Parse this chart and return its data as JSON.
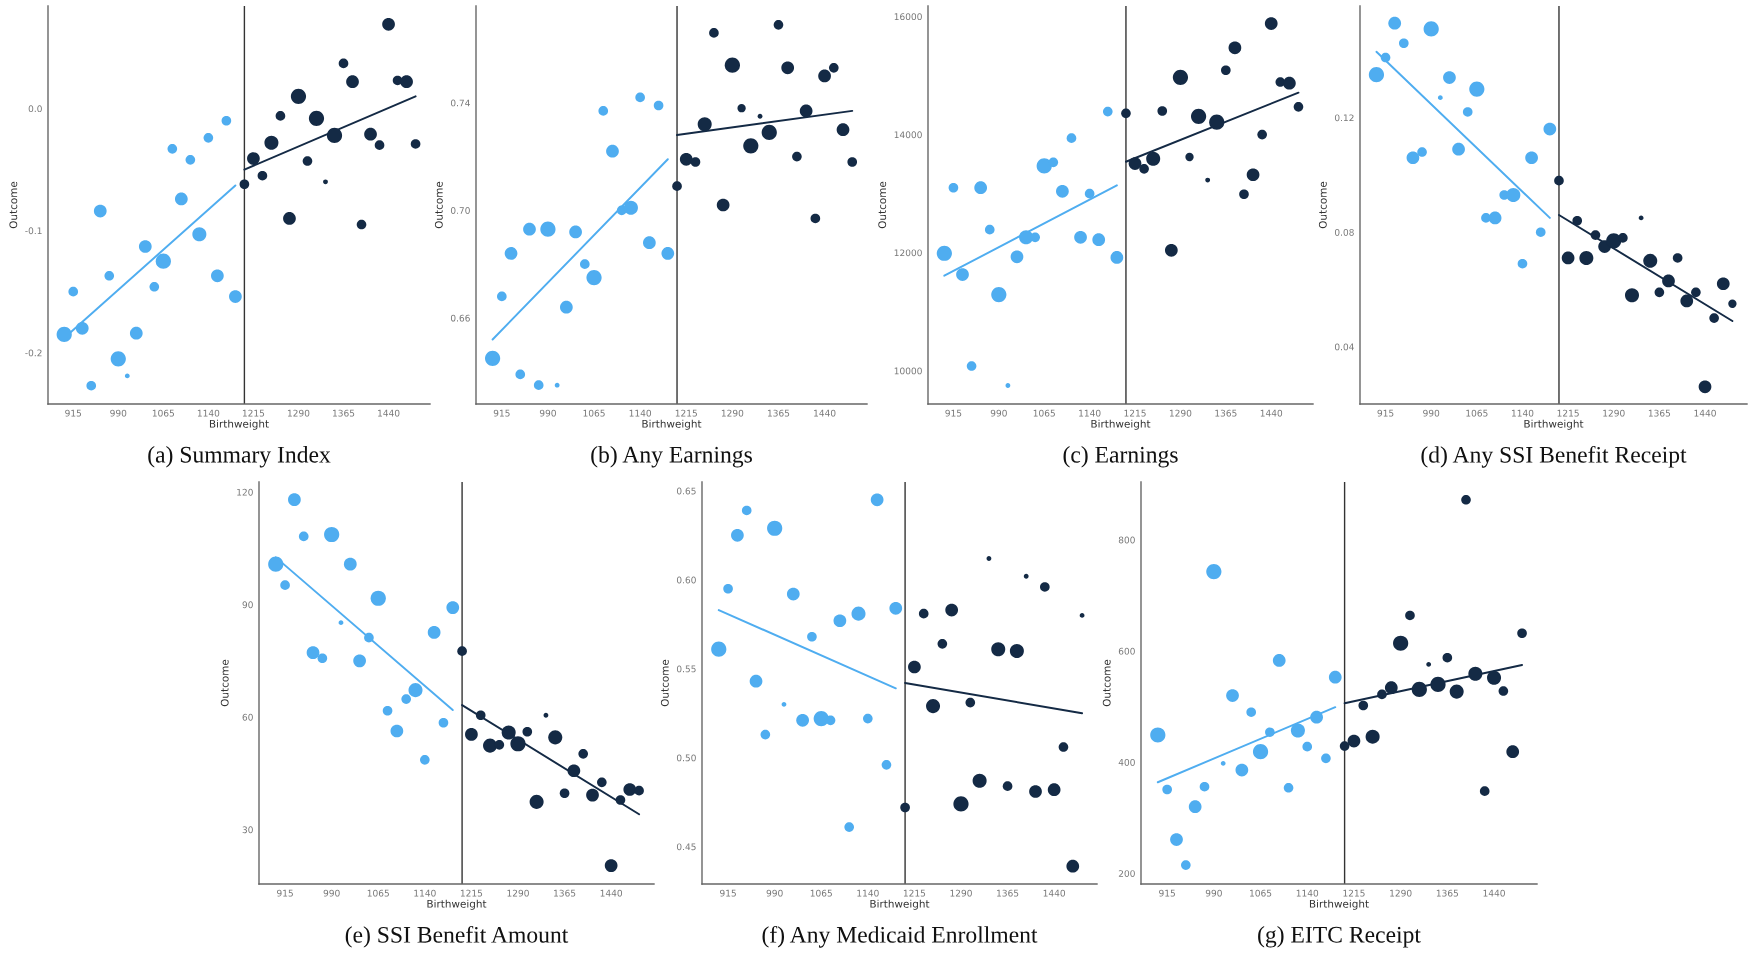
{
  "chart_data": [
    {
      "type": "bubble",
      "title": "(a) Summary Index",
      "xlabel": "Birthweight",
      "ylabel": "Outcome",
      "xlim": [
        873,
        1509
      ],
      "xticks": [
        915,
        990,
        1065,
        1140,
        1215,
        1290,
        1365,
        1440
      ],
      "ylim": [
        -0.242,
        0.084
      ],
      "yticks": [
        -0.2,
        -0.1,
        {
          "value": 0,
          "label": "0.0"
        }
      ],
      "ref_lines": [
        {
          "axis": "x",
          "value": 1200,
          "color": "#333333"
        }
      ],
      "series": [
        {
          "color": "#4fadf0",
          "x": [
            900,
            915,
            930,
            945,
            960,
            975,
            990,
            1005,
            1020,
            1035,
            1050,
            1065,
            1080,
            1095,
            1110,
            1125,
            1140,
            1155,
            1170,
            1185
          ],
          "values": [
            -0.185,
            -0.15,
            -0.18,
            -0.227,
            -0.084,
            -0.137,
            -0.205,
            -0.219,
            -0.184,
            -0.113,
            -0.146,
            -0.125,
            -0.033,
            -0.074,
            -0.042,
            -0.103,
            -0.024,
            -0.137,
            -0.01,
            -0.154
          ],
          "sizes": [
            1,
            0.4,
            0.7,
            0.4,
            0.7,
            0.4,
            1,
            0.1,
            0.7,
            0.7,
            0.4,
            1,
            0.4,
            0.7,
            0.4,
            0.85,
            0.4,
            0.7,
            0.4,
            0.7
          ]
        },
        {
          "color": "#142a45",
          "x": [
            1200,
            1215,
            1230,
            1245,
            1260,
            1275,
            1290,
            1305,
            1320,
            1335,
            1350,
            1365,
            1380,
            1395,
            1410,
            1425,
            1440,
            1455,
            1470,
            1485
          ],
          "values": [
            -0.062,
            -0.041,
            -0.055,
            -0.028,
            -0.006,
            -0.09,
            0.01,
            -0.043,
            -0.008,
            -0.06,
            -0.022,
            0.037,
            0.022,
            -0.095,
            -0.021,
            -0.03,
            0.069,
            0.023,
            0.022,
            -0.029
          ],
          "sizes": [
            0.4,
            0.7,
            0.4,
            0.85,
            0.4,
            0.7,
            1,
            0.4,
            1,
            0.1,
            1,
            0.4,
            0.7,
            0.4,
            0.7,
            0.4,
            0.7,
            0.4,
            0.7,
            0.4
          ]
        },
        {
          "type": "line",
          "color": "#4fadf0",
          "x": [
            900,
            1185
          ],
          "values": [
            -0.188,
            -0.063
          ]
        },
        {
          "type": "line",
          "color": "#142a45",
          "x": [
            1200,
            1485
          ],
          "values": [
            -0.05,
            0.01
          ]
        }
      ]
    },
    {
      "type": "bubble",
      "title": "(b) Any Earnings",
      "xlabel": "Birthweight",
      "ylabel": "Outcome",
      "xlim": [
        873,
        1509
      ],
      "xticks": [
        915,
        990,
        1065,
        1140,
        1215,
        1290,
        1365,
        1440
      ],
      "ylim": [
        0.628,
        0.776
      ],
      "yticks": [
        0.66,
        {
          "value": 0.7,
          "label": "0.70"
        },
        0.74
      ],
      "ref_lines": [
        {
          "axis": "x",
          "value": 1200,
          "color": "#333333"
        }
      ],
      "series": [
        {
          "color": "#4fadf0",
          "x": [
            900,
            915,
            930,
            945,
            960,
            975,
            990,
            1005,
            1020,
            1035,
            1050,
            1065,
            1080,
            1095,
            1110,
            1125,
            1140,
            1155,
            1170,
            1185
          ],
          "values": [
            0.645,
            0.668,
            0.684,
            0.639,
            0.693,
            0.635,
            0.693,
            0.635,
            0.664,
            0.692,
            0.68,
            0.675,
            0.737,
            0.722,
            0.7,
            0.701,
            0.742,
            0.688,
            0.739,
            0.684
          ],
          "sizes": [
            1,
            0.4,
            0.7,
            0.4,
            0.7,
            0.4,
            1,
            0.1,
            0.7,
            0.7,
            0.4,
            1,
            0.4,
            0.7,
            0.4,
            0.85,
            0.4,
            0.7,
            0.4,
            0.7
          ]
        },
        {
          "color": "#142a45",
          "x": [
            1200,
            1215,
            1230,
            1245,
            1260,
            1275,
            1290,
            1305,
            1320,
            1335,
            1350,
            1365,
            1380,
            1395,
            1410,
            1425,
            1440,
            1455,
            1470,
            1485
          ],
          "values": [
            0.709,
            0.719,
            0.718,
            0.732,
            0.766,
            0.702,
            0.754,
            0.738,
            0.724,
            0.735,
            0.729,
            0.769,
            0.753,
            0.72,
            0.737,
            0.697,
            0.75,
            0.753,
            0.73,
            0.718
          ],
          "sizes": [
            0.4,
            0.7,
            0.4,
            0.85,
            0.4,
            0.7,
            1,
            0.3,
            1,
            0.1,
            1,
            0.4,
            0.7,
            0.4,
            0.7,
            0.4,
            0.7,
            0.4,
            0.7,
            0.4
          ]
        },
        {
          "type": "line",
          "color": "#4fadf0",
          "x": [
            900,
            1185
          ],
          "values": [
            0.652,
            0.719
          ]
        },
        {
          "type": "line",
          "color": "#142a45",
          "x": [
            1200,
            1485
          ],
          "values": [
            0.728,
            0.737
          ]
        }
      ]
    },
    {
      "type": "bubble",
      "title": "(c) Earnings",
      "xlabel": "Birthweight",
      "ylabel": "Outcome",
      "xlim": [
        873,
        1509
      ],
      "xticks": [
        915,
        990,
        1065,
        1140,
        1215,
        1290,
        1365,
        1440
      ],
      "ylim": [
        9437,
        16178
      ],
      "yticks": [
        10000,
        12000,
        14000,
        16000
      ],
      "ref_lines": [
        {
          "axis": "x",
          "value": 1200,
          "color": "#333333"
        }
      ],
      "series": [
        {
          "color": "#4fadf0",
          "x": [
            900,
            915,
            930,
            945,
            960,
            975,
            990,
            1005,
            1020,
            1035,
            1050,
            1065,
            1080,
            1095,
            1110,
            1125,
            1140,
            1155,
            1170,
            1185
          ],
          "values": [
            11990,
            13100,
            11630,
            10080,
            13100,
            12390,
            11290,
            9750,
            11930,
            12260,
            12260,
            13470,
            13530,
            13040,
            13940,
            12260,
            13000,
            12220,
            14390,
            11920
          ],
          "sizes": [
            1,
            0.4,
            0.7,
            0.4,
            0.7,
            0.4,
            1,
            0.1,
            0.7,
            0.85,
            0.4,
            1,
            0.4,
            0.7,
            0.4,
            0.7,
            0.4,
            0.7,
            0.4,
            0.7
          ]
        },
        {
          "color": "#142a45",
          "x": [
            1200,
            1215,
            1230,
            1245,
            1260,
            1275,
            1290,
            1305,
            1320,
            1335,
            1350,
            1365,
            1380,
            1395,
            1410,
            1425,
            1440,
            1455,
            1470,
            1485
          ],
          "values": [
            14360,
            13510,
            13420,
            13590,
            14400,
            12040,
            14970,
            13620,
            14310,
            13230,
            14210,
            15090,
            15470,
            12990,
            13320,
            14000,
            15880,
            14890,
            14870,
            14470
          ],
          "sizes": [
            0.4,
            0.7,
            0.4,
            0.85,
            0.4,
            0.7,
            1,
            0.3,
            1,
            0.1,
            1,
            0.4,
            0.7,
            0.4,
            0.7,
            0.4,
            0.7,
            0.4,
            0.7,
            0.4
          ]
        },
        {
          "type": "line",
          "color": "#4fadf0",
          "x": [
            900,
            1185
          ],
          "values": [
            11610,
            13140
          ]
        },
        {
          "type": "line",
          "color": "#142a45",
          "x": [
            1200,
            1485
          ],
          "values": [
            13540,
            14710
          ]
        }
      ]
    },
    {
      "type": "bubble",
      "title": "(d) Any SSI Benefit Receipt",
      "xlabel": "Birthweight",
      "ylabel": "Outcome",
      "xlim": [
        873,
        1509
      ],
      "xticks": [
        915,
        990,
        1065,
        1140,
        1215,
        1290,
        1365,
        1440
      ],
      "ylim": [
        0.02,
        0.159
      ],
      "yticks": [
        0.04,
        0.08,
        0.12
      ],
      "ref_lines": [
        {
          "axis": "x",
          "value": 1200,
          "color": "#333333"
        }
      ],
      "series": [
        {
          "color": "#4fadf0",
          "x": [
            900,
            915,
            930,
            945,
            960,
            975,
            990,
            1005,
            1020,
            1035,
            1050,
            1065,
            1080,
            1095,
            1110,
            1125,
            1140,
            1155,
            1170,
            1185
          ],
          "values": [
            0.135,
            0.141,
            0.153,
            0.146,
            0.106,
            0.108,
            0.151,
            0.127,
            0.134,
            0.109,
            0.122,
            0.13,
            0.085,
            0.085,
            0.093,
            0.093,
            0.069,
            0.106,
            0.08,
            0.116
          ],
          "sizes": [
            1,
            0.4,
            0.7,
            0.4,
            0.7,
            0.4,
            1,
            0.1,
            0.7,
            0.7,
            0.4,
            1,
            0.4,
            0.7,
            0.4,
            0.85,
            0.4,
            0.7,
            0.4,
            0.7
          ]
        },
        {
          "color": "#142a45",
          "x": [
            1200,
            1215,
            1230,
            1245,
            1260,
            1275,
            1290,
            1305,
            1320,
            1335,
            1350,
            1365,
            1380,
            1395,
            1410,
            1425,
            1440,
            1455,
            1470,
            1485
          ],
          "values": [
            0.098,
            0.071,
            0.084,
            0.071,
            0.079,
            0.075,
            0.077,
            0.078,
            0.058,
            0.085,
            0.07,
            0.059,
            0.063,
            0.071,
            0.056,
            0.059,
            0.026,
            0.05,
            0.062,
            0.055
          ],
          "sizes": [
            0.4,
            0.7,
            0.4,
            0.85,
            0.4,
            0.7,
            1,
            0.4,
            0.85,
            0.1,
            0.85,
            0.4,
            0.7,
            0.4,
            0.7,
            0.4,
            0.7,
            0.4,
            0.7,
            0.3
          ]
        },
        {
          "type": "line",
          "color": "#4fadf0",
          "x": [
            900,
            1185
          ],
          "values": [
            0.143,
            0.085
          ]
        },
        {
          "type": "line",
          "color": "#142a45",
          "x": [
            1200,
            1485
          ],
          "values": [
            0.086,
            0.049
          ]
        }
      ]
    },
    {
      "type": "bubble",
      "title": "(e) SSI Benefit Amount",
      "xlabel": "Birthweight",
      "ylabel": "Outcome",
      "xlim": [
        873,
        1509
      ],
      "xticks": [
        915,
        990,
        1065,
        1140,
        1215,
        1290,
        1365,
        1440
      ],
      "ylim": [
        15.5,
        122.7
      ],
      "yticks": [
        30,
        60,
        90,
        120
      ],
      "ref_lines": [
        {
          "axis": "x",
          "value": 1200,
          "color": "#333333"
        }
      ],
      "series": [
        {
          "color": "#4fadf0",
          "x": [
            900,
            915,
            930,
            945,
            960,
            975,
            990,
            1005,
            1020,
            1035,
            1050,
            1065,
            1080,
            1095,
            1110,
            1125,
            1140,
            1155,
            1170,
            1185
          ],
          "values": [
            100.8,
            95.2,
            118.0,
            108.2,
            77.2,
            75.7,
            108.7,
            85.2,
            100.8,
            75.0,
            81.2,
            91.7,
            61.7,
            56.3,
            64.8,
            67.2,
            48.6,
            82.6,
            58.5,
            89.2
          ],
          "sizes": [
            1,
            0.4,
            0.7,
            0.4,
            0.7,
            0.4,
            1,
            0.1,
            0.7,
            0.7,
            0.4,
            1,
            0.4,
            0.7,
            0.4,
            0.85,
            0.4,
            0.7,
            0.4,
            0.7
          ]
        },
        {
          "color": "#142a45",
          "x": [
            1200,
            1215,
            1230,
            1245,
            1260,
            1275,
            1290,
            1305,
            1320,
            1335,
            1350,
            1365,
            1380,
            1395,
            1410,
            1425,
            1440,
            1455,
            1470,
            1485
          ],
          "values": [
            77.6,
            55.4,
            60.5,
            52.4,
            52.6,
            55.9,
            52.9,
            56.1,
            37.4,
            60.5,
            54.6,
            39.7,
            45.7,
            50.2,
            39.2,
            42.6,
            20.4,
            37.9,
            40.7,
            40.4
          ],
          "sizes": [
            0.4,
            0.7,
            0.4,
            0.85,
            0.4,
            0.85,
            1,
            0.4,
            0.85,
            0.1,
            0.85,
            0.4,
            0.7,
            0.4,
            0.7,
            0.4,
            0.7,
            0.4,
            0.7,
            0.4
          ]
        },
        {
          "type": "line",
          "color": "#4fadf0",
          "x": [
            900,
            1185
          ],
          "values": [
            102.6,
            61.9
          ]
        },
        {
          "type": "line",
          "color": "#142a45",
          "x": [
            1200,
            1485
          ],
          "values": [
            63.2,
            34.1
          ]
        }
      ]
    },
    {
      "type": "bubble",
      "title": "(f) Any Medicaid Enrollment",
      "xlabel": "Birthweight",
      "ylabel": "Outcome",
      "xlim": [
        873,
        1509
      ],
      "xticks": [
        915,
        990,
        1065,
        1140,
        1215,
        1290,
        1365,
        1440
      ],
      "ylim": [
        0.429,
        0.655
      ],
      "yticks": [
        0.45,
        {
          "value": 0.5,
          "label": "0.50"
        },
        0.55,
        {
          "value": 0.6,
          "label": "0.60"
        },
        0.65
      ],
      "ref_lines": [
        {
          "axis": "x",
          "value": 1200,
          "color": "#333333"
        }
      ],
      "series": [
        {
          "color": "#4fadf0",
          "x": [
            900,
            915,
            930,
            945,
            960,
            975,
            990,
            1005,
            1020,
            1035,
            1050,
            1065,
            1080,
            1095,
            1110,
            1125,
            1140,
            1155,
            1170,
            1185
          ],
          "values": [
            0.561,
            0.595,
            0.625,
            0.639,
            0.543,
            0.513,
            0.629,
            0.53,
            0.592,
            0.521,
            0.568,
            0.522,
            0.521,
            0.577,
            0.461,
            0.581,
            0.522,
            0.645,
            0.496,
            0.584
          ],
          "sizes": [
            1,
            0.4,
            0.7,
            0.4,
            0.7,
            0.4,
            1,
            0.1,
            0.7,
            0.7,
            0.4,
            1,
            0.4,
            0.7,
            0.4,
            0.85,
            0.4,
            0.7,
            0.4,
            0.7
          ]
        },
        {
          "color": "#142a45",
          "x": [
            1200,
            1215,
            1230,
            1245,
            1260,
            1275,
            1290,
            1305,
            1320,
            1335,
            1350,
            1365,
            1380,
            1395,
            1410,
            1425,
            1440,
            1455,
            1470,
            1485
          ],
          "values": [
            0.472,
            0.551,
            0.581,
            0.529,
            0.564,
            0.583,
            0.474,
            0.531,
            0.487,
            0.612,
            0.561,
            0.484,
            0.56,
            0.602,
            0.481,
            0.596,
            0.482,
            0.506,
            0.439,
            0.58
          ],
          "sizes": [
            0.4,
            0.7,
            0.4,
            0.85,
            0.4,
            0.7,
            1,
            0.4,
            0.85,
            0.1,
            0.85,
            0.4,
            0.85,
            0.1,
            0.7,
            0.4,
            0.7,
            0.4,
            0.7,
            0.1
          ]
        },
        {
          "type": "line",
          "color": "#4fadf0",
          "x": [
            900,
            1185
          ],
          "values": [
            0.583,
            0.539
          ]
        },
        {
          "type": "line",
          "color": "#142a45",
          "x": [
            1200,
            1485
          ],
          "values": [
            0.542,
            0.525
          ]
        }
      ]
    },
    {
      "type": "bubble",
      "title": "(g) EITC Receipt",
      "xlabel": "Birthweight",
      "ylabel": "Outcome",
      "xlim": [
        873,
        1509
      ],
      "xticks": [
        915,
        990,
        1065,
        1140,
        1215,
        1290,
        1365,
        1440
      ],
      "ylim": [
        181,
        904
      ],
      "yticks": [
        200,
        400,
        600,
        800
      ],
      "ref_lines": [
        {
          "axis": "x",
          "value": 1200,
          "color": "#333333"
        }
      ],
      "series": [
        {
          "color": "#4fadf0",
          "x": [
            900,
            915,
            930,
            945,
            960,
            975,
            990,
            1005,
            1020,
            1035,
            1050,
            1065,
            1080,
            1095,
            1110,
            1125,
            1140,
            1155,
            1170,
            1185
          ],
          "values": [
            449,
            351,
            261,
            215,
            320,
            356,
            743,
            398,
            520,
            386,
            490,
            419,
            454,
            583,
            354,
            457,
            428,
            481,
            407,
            553
          ],
          "sizes": [
            1,
            0.4,
            0.7,
            0.4,
            0.7,
            0.4,
            1,
            0.1,
            0.7,
            0.7,
            0.4,
            1,
            0.4,
            0.7,
            0.4,
            0.85,
            0.4,
            0.7,
            0.4,
            0.7
          ]
        },
        {
          "color": "#142a45",
          "x": [
            1200,
            1215,
            1230,
            1245,
            1260,
            1275,
            1290,
            1305,
            1320,
            1335,
            1350,
            1365,
            1380,
            1395,
            1410,
            1425,
            1440,
            1455,
            1470,
            1485
          ],
          "values": [
            429,
            438,
            502,
            446,
            522,
            534,
            614,
            664,
            531,
            576,
            540,
            588,
            527,
            872,
            559,
            348,
            552,
            528,
            419,
            632
          ],
          "sizes": [
            0.4,
            0.7,
            0.4,
            0.85,
            0.4,
            0.7,
            1,
            0.4,
            1,
            0.1,
            1,
            0.4,
            0.85,
            0.4,
            0.85,
            0.4,
            0.85,
            0.4,
            0.7,
            0.4
          ]
        },
        {
          "type": "line",
          "color": "#4fadf0",
          "x": [
            900,
            1185
          ],
          "values": [
            364,
            499
          ]
        },
        {
          "type": "line",
          "color": "#142a45",
          "x": [
            1200,
            1485
          ],
          "values": [
            506,
            575
          ]
        }
      ]
    }
  ]
}
